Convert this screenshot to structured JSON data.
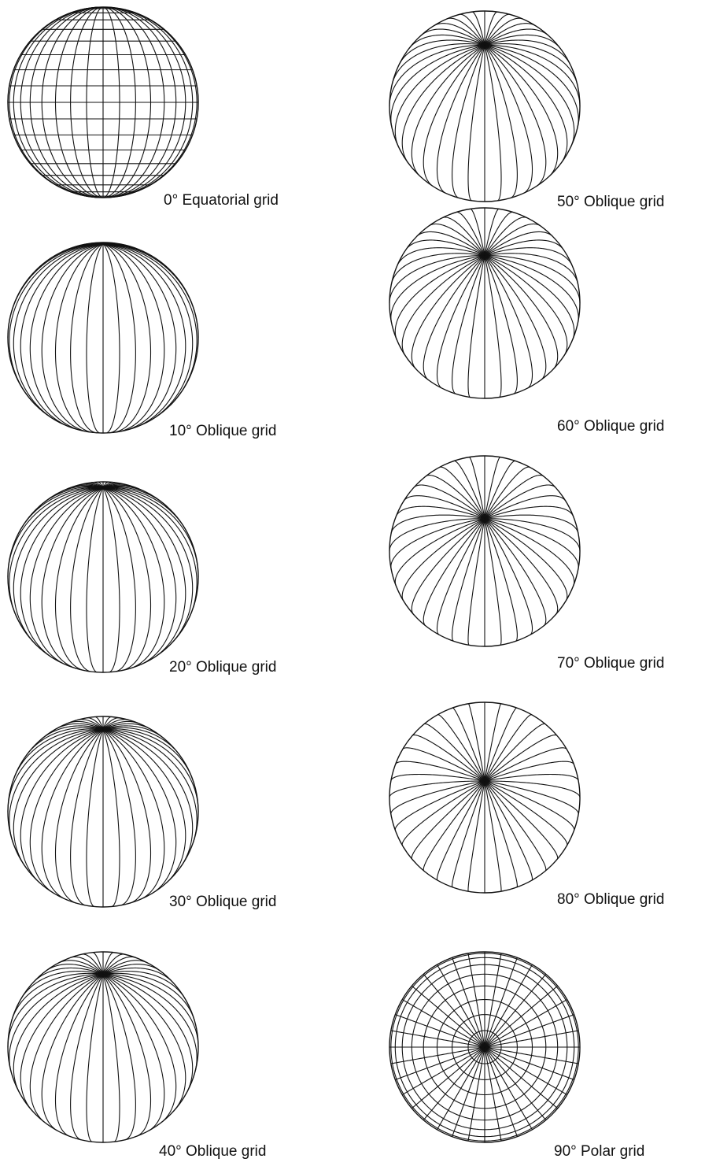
{
  "colors": {
    "ink": "#111111",
    "background": "#ffffff"
  },
  "projections": [
    {
      "id": "eq-0",
      "tilt_deg": 0,
      "type": "equatorial",
      "caption": "0° Equatorial grid"
    },
    {
      "id": "obl-10",
      "tilt_deg": 10,
      "type": "oblique",
      "caption": "10° Oblique grid"
    },
    {
      "id": "obl-20",
      "tilt_deg": 20,
      "type": "oblique",
      "caption": "20° Oblique grid"
    },
    {
      "id": "obl-30",
      "tilt_deg": 30,
      "type": "oblique",
      "caption": "30° Oblique grid"
    },
    {
      "id": "obl-40",
      "tilt_deg": 40,
      "type": "oblique",
      "caption": "40° Oblique grid"
    },
    {
      "id": "obl-50",
      "tilt_deg": 50,
      "type": "oblique",
      "caption": "50° Oblique grid"
    },
    {
      "id": "obl-60",
      "tilt_deg": 60,
      "type": "oblique",
      "caption": "60° Oblique grid"
    },
    {
      "id": "obl-70",
      "tilt_deg": 70,
      "type": "oblique",
      "caption": "70° Oblique grid"
    },
    {
      "id": "obl-80",
      "tilt_deg": 80,
      "type": "oblique",
      "caption": "80° Oblique grid"
    },
    {
      "id": "polar-90",
      "tilt_deg": 90,
      "type": "polar",
      "caption": "90° Polar grid"
    }
  ]
}
